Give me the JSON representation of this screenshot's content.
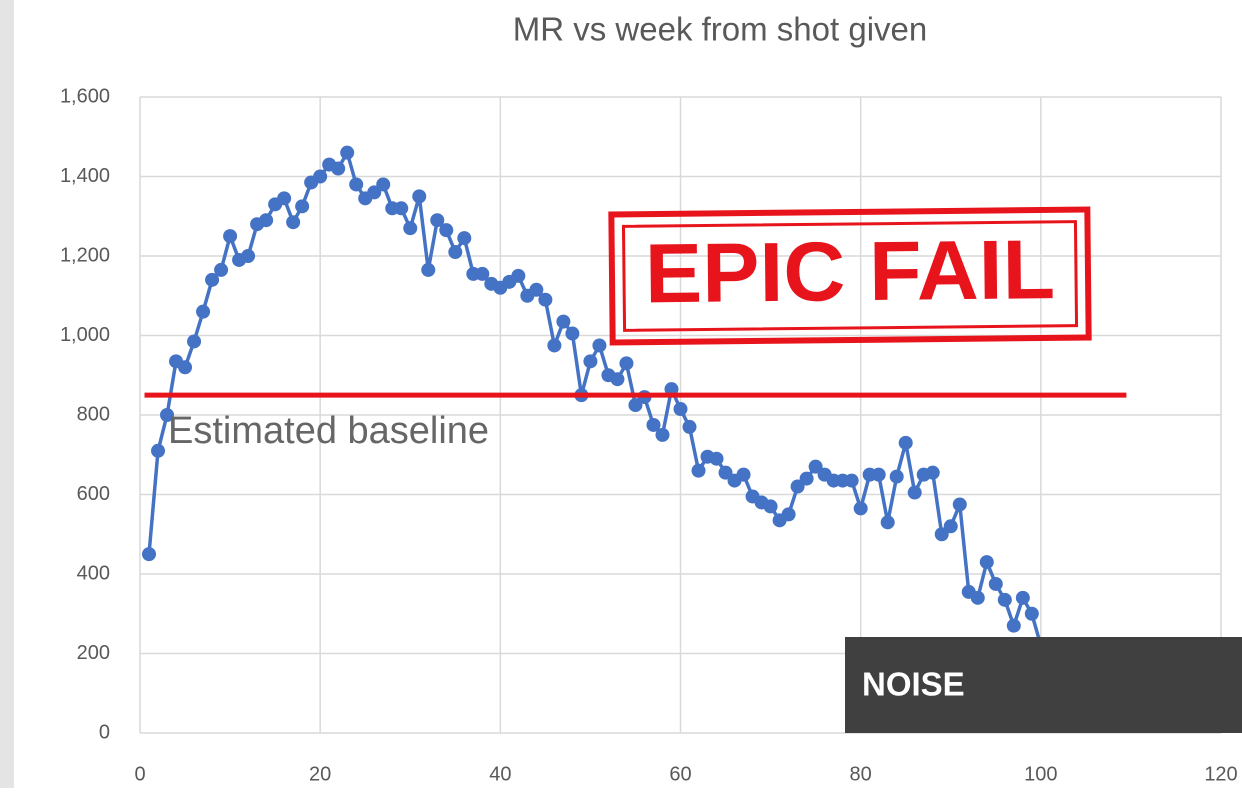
{
  "chart_data": {
    "type": "line",
    "title": "MR vs week from shot given",
    "x": [
      1,
      2,
      3,
      4,
      5,
      6,
      7,
      8,
      9,
      10,
      11,
      12,
      13,
      14,
      15,
      16,
      17,
      18,
      19,
      20,
      21,
      22,
      23,
      24,
      25,
      26,
      27,
      28,
      29,
      30,
      31,
      32,
      33,
      34,
      35,
      36,
      37,
      38,
      39,
      40,
      41,
      42,
      43,
      44,
      45,
      46,
      47,
      48,
      49,
      50,
      51,
      52,
      53,
      54,
      55,
      56,
      57,
      58,
      59,
      60,
      61,
      62,
      63,
      64,
      65,
      66,
      67,
      68,
      69,
      70,
      71,
      72,
      73,
      74,
      75,
      76,
      77,
      78,
      79,
      80,
      81,
      82,
      83,
      84,
      85,
      86,
      87,
      88,
      89,
      90,
      91,
      92,
      93,
      94,
      95,
      96,
      97,
      98,
      99,
      100
    ],
    "values": [
      450,
      710,
      800,
      935,
      920,
      985,
      1060,
      1140,
      1165,
      1250,
      1190,
      1200,
      1280,
      1290,
      1330,
      1345,
      1285,
      1325,
      1385,
      1400,
      1430,
      1420,
      1460,
      1380,
      1345,
      1360,
      1380,
      1320,
      1320,
      1270,
      1350,
      1165,
      1290,
      1265,
      1210,
      1245,
      1155,
      1155,
      1130,
      1120,
      1135,
      1150,
      1100,
      1115,
      1090,
      975,
      1035,
      1005,
      850,
      935,
      975,
      900,
      890,
      930,
      825,
      845,
      775,
      750,
      865,
      815,
      770,
      660,
      695,
      690,
      655,
      635,
      650,
      595,
      580,
      570,
      535,
      550,
      620,
      640,
      670,
      650,
      635,
      635,
      635,
      565,
      650,
      650,
      530,
      645,
      730,
      605,
      650,
      655,
      500,
      520,
      575,
      355,
      340,
      430,
      375,
      335,
      270,
      340,
      300,
      220
    ],
    "color": "#4472c4",
    "xlim": [
      0,
      120
    ],
    "xticks": [
      0,
      20,
      40,
      60,
      80,
      100,
      120
    ],
    "ylim": [
      0,
      1600
    ],
    "yticks": [
      0,
      200,
      400,
      600,
      800,
      {
        "value": 1000,
        "label": "1,000"
      },
      {
        "value": 1200,
        "label": "1,200"
      },
      {
        "value": 1400,
        "label": "1,400"
      },
      {
        "value": 1600,
        "label": "1,600"
      }
    ],
    "grid": true,
    "baseline": {
      "label": "Estimated baseline",
      "value": 850,
      "x": [
        0.5,
        109.5
      ],
      "color": "#e8141c"
    },
    "stamp": "EPIC FAIL",
    "noise_label": "NOISE"
  }
}
